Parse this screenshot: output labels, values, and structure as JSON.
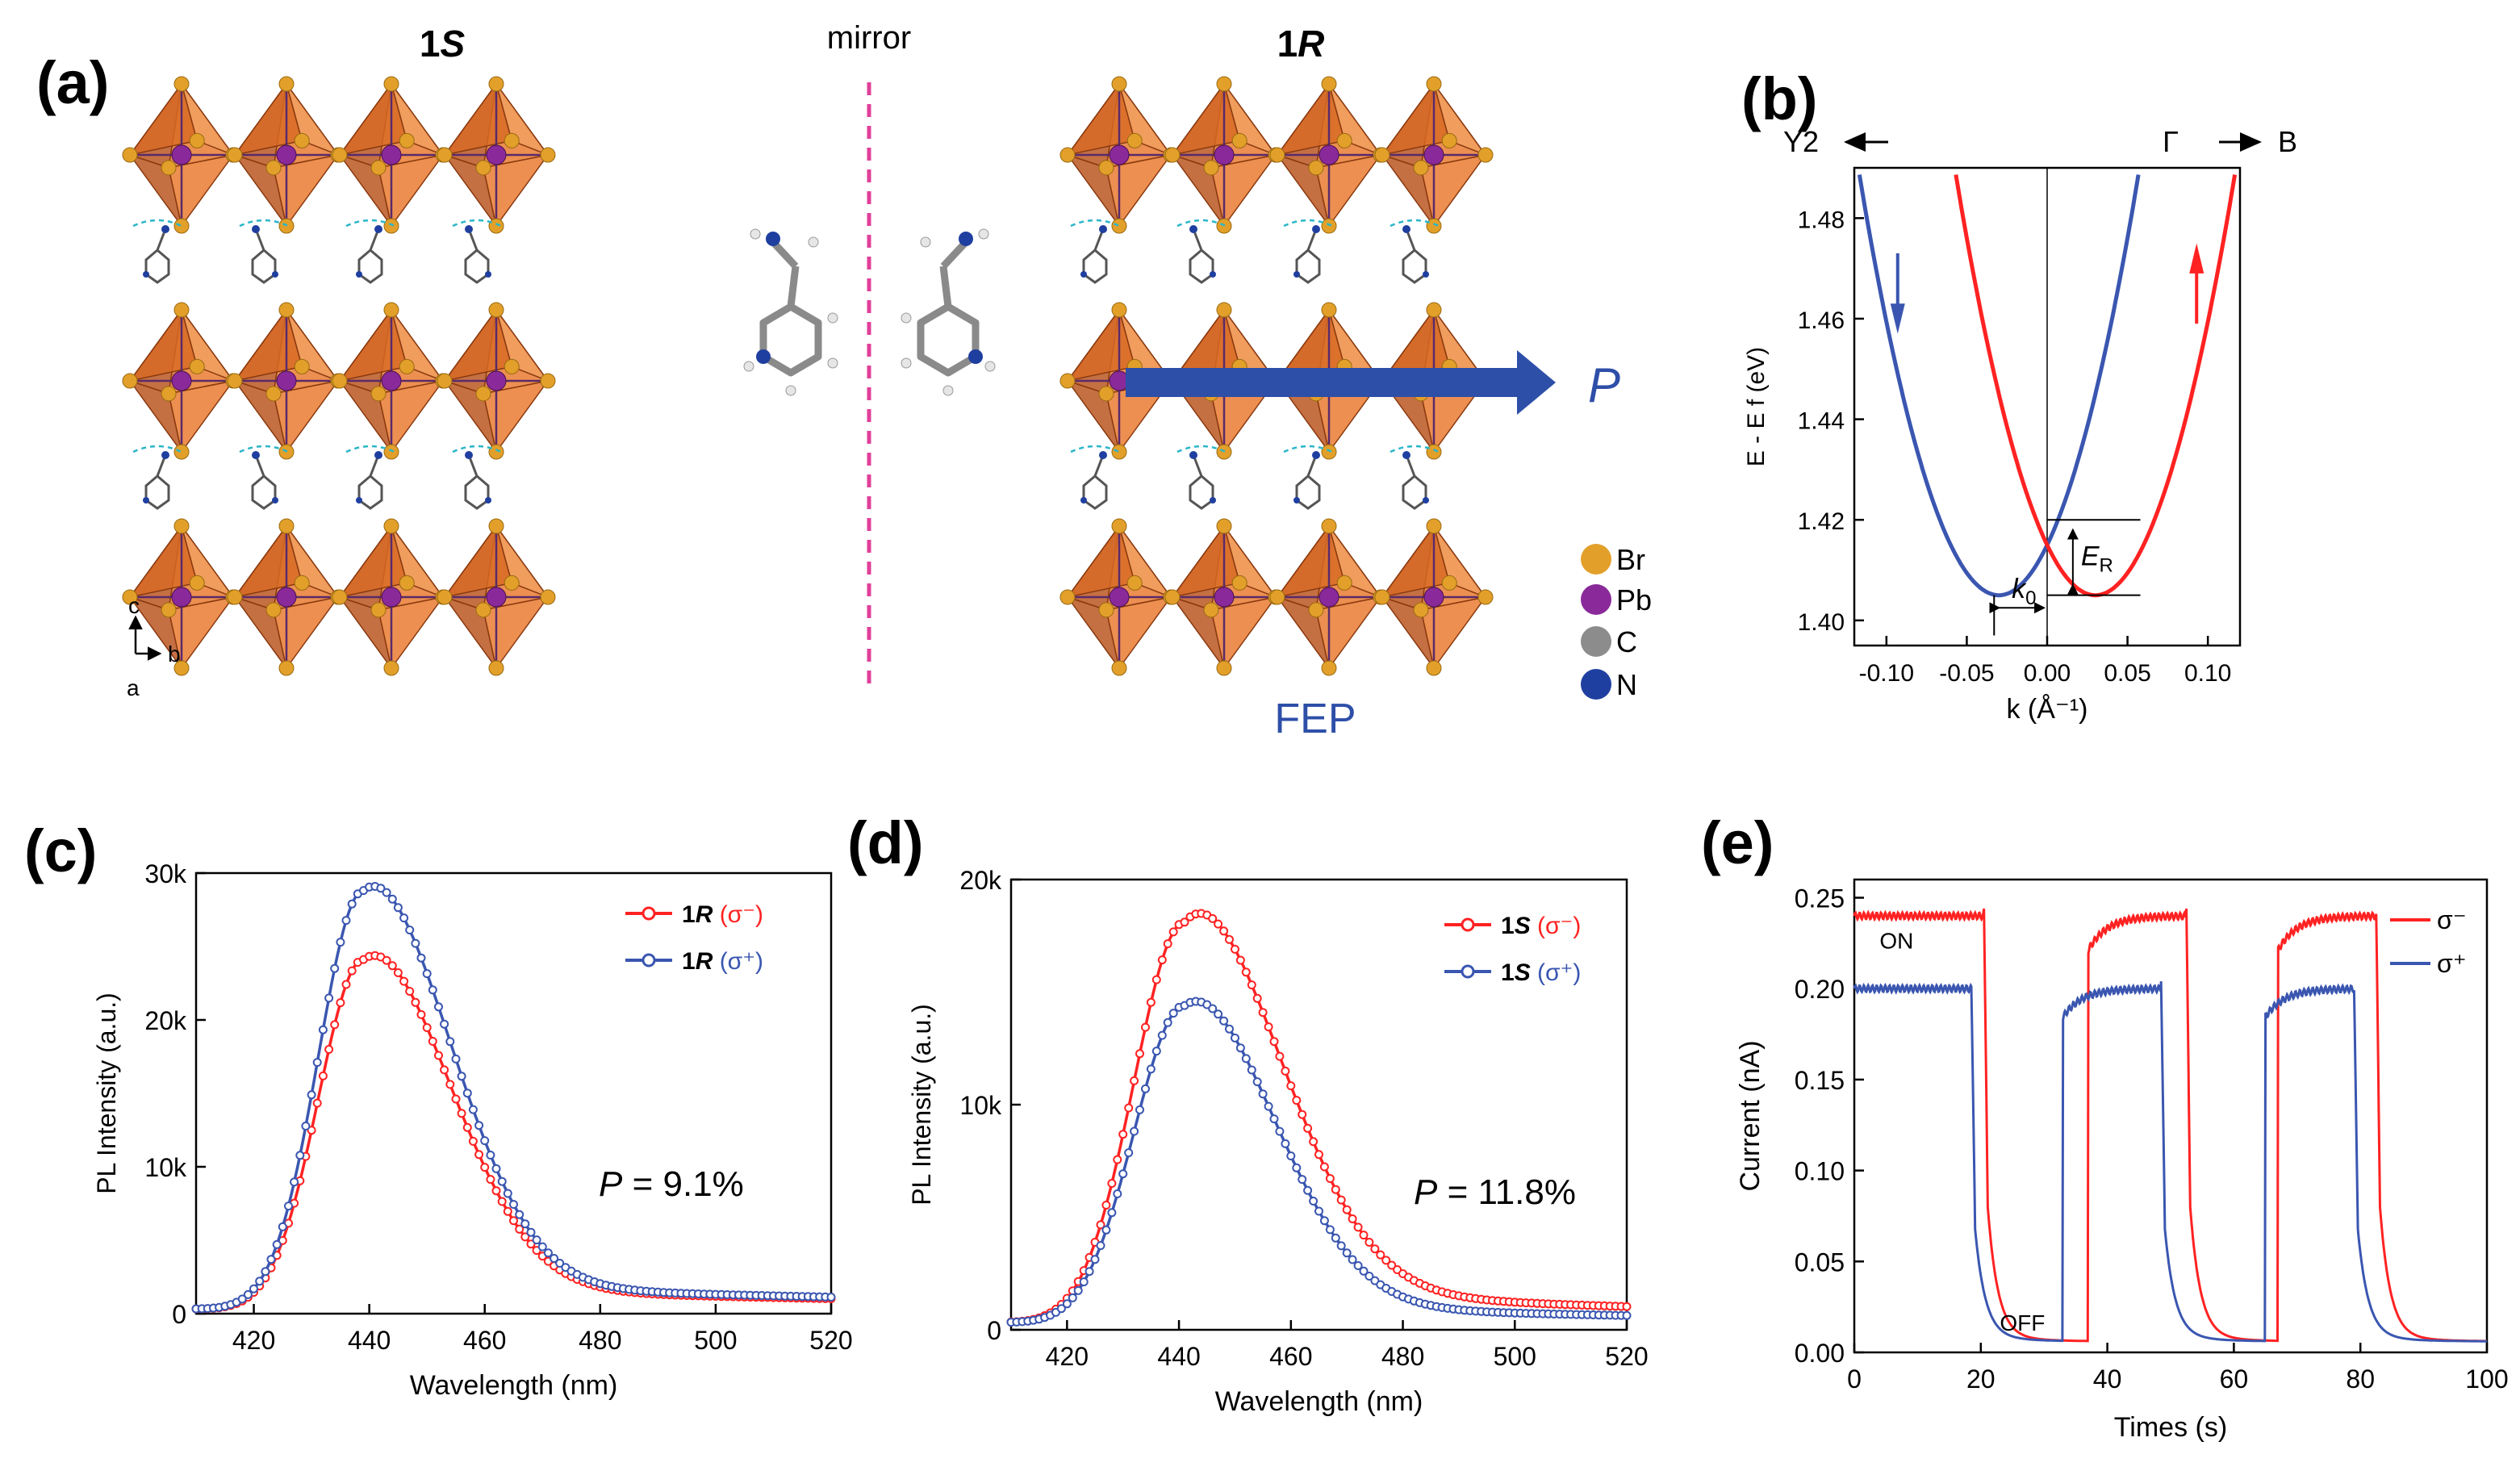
{
  "colors": {
    "red": "#ff2222",
    "blue": "#3a56b0",
    "fep_blue": "#2e4fa8",
    "octa": "#e8762a",
    "octa_dark": "#b8501a",
    "br": "#e2a02a",
    "pb": "#8a2a9a",
    "c": "#8c8c8c",
    "n": "#1f3fa0",
    "mirror": "#e0409a",
    "hbond": "#2bb6c8"
  },
  "panel_a": {
    "label": "(a)",
    "left_title": "1S",
    "left_title_num": "1",
    "left_title_sym": "S",
    "mirror_label": "mirror",
    "right_title_num": "1",
    "right_title_sym": "R",
    "polarization_label": "P",
    "fep_label": "FEP",
    "axis_c": "c",
    "axis_b": "b",
    "axis_a": "a",
    "legend": [
      {
        "element": "Br",
        "color_key": "br"
      },
      {
        "element": "Pb",
        "color_key": "pb"
      },
      {
        "element": "C",
        "color_key": "c"
      },
      {
        "element": "N",
        "color_key": "n"
      }
    ]
  },
  "chart_data": [
    {
      "id": "b",
      "label": "(b)",
      "type": "line",
      "title": "",
      "direction_left": "Y2",
      "direction_center": "Γ",
      "direction_right": "B",
      "xlabel": "k (Å⁻¹)",
      "ylabel": "E - E f (eV)",
      "xlim": [
        -0.12,
        0.12
      ],
      "ylim": [
        1.395,
        1.49
      ],
      "xticks": [
        -0.1,
        -0.05,
        0.0,
        0.05,
        0.1
      ],
      "xtick_labels": [
        "-0.10",
        "-0.05",
        "0.00",
        "0.05",
        "0.10"
      ],
      "yticks": [
        1.4,
        1.42,
        1.44,
        1.46,
        1.48
      ],
      "ytick_labels": [
        "1.40",
        "1.42",
        "1.44",
        "1.46",
        "1.48"
      ],
      "series": [
        {
          "name": "spin down",
          "color_key": "blue",
          "k0": -0.03,
          "e0": 1.405,
          "curvature": 11.1
        },
        {
          "name": "spin up",
          "color_key": "red",
          "k0": 0.03,
          "e0": 1.405,
          "curvature": 11.1
        }
      ],
      "annotations": {
        "k0_label": "k0",
        "er_label": "ER",
        "crossing_energy": 1.42
      }
    },
    {
      "id": "c",
      "label": "(c)",
      "type": "line",
      "xlabel": "Wavelength (nm)",
      "ylabel": "PL Intensity (a.u.)",
      "xlim": [
        410,
        520
      ],
      "ylim": [
        0,
        30000
      ],
      "xticks": [
        420,
        440,
        460,
        480,
        500,
        520
      ],
      "xtick_labels": [
        "420",
        "440",
        "460",
        "480",
        "500",
        "520"
      ],
      "yticks": [
        0,
        10000,
        20000,
        30000
      ],
      "ytick_labels": [
        "0",
        "10k",
        "20k",
        "30k"
      ],
      "annotation": "P = 9.1%",
      "annotation_sym": "P",
      "annotation_val": " = 9.1%",
      "series": [
        {
          "name": "1R (σ⁻)",
          "sample": "1R",
          "pol": "(σ⁻)",
          "color_key": "red",
          "peak_x": 439,
          "peak": 24000,
          "w_left": 7.8,
          "w_right": 14.5,
          "tail": 900
        },
        {
          "name": "1R (σ⁺)",
          "sample": "1R",
          "pol": "(σ⁺)",
          "color_key": "blue",
          "peak_x": 439,
          "peak": 28700,
          "w_left": 7.8,
          "w_right": 14.5,
          "tail": 1000
        }
      ]
    },
    {
      "id": "d",
      "label": "(d)",
      "type": "line",
      "xlabel": "Wavelength (nm)",
      "ylabel": "PL Intensity (a.u.)",
      "xlim": [
        410,
        520
      ],
      "ylim": [
        0,
        20000
      ],
      "xticks": [
        420,
        440,
        460,
        480,
        500,
        520
      ],
      "xtick_labels": [
        "420",
        "440",
        "460",
        "480",
        "500",
        "520"
      ],
      "yticks": [
        0,
        10000,
        20000
      ],
      "ytick_labels": [
        "0",
        "10k",
        "20k"
      ],
      "annotation": "P = 11.8%",
      "annotation_sym": "P",
      "annotation_val": " = 11.8%",
      "series": [
        {
          "name": "1S (σ⁻)",
          "sample": "1S",
          "pol": "(σ⁻)",
          "color_key": "red",
          "peak_x": 441,
          "peak": 18000,
          "w_left": 9.0,
          "w_right": 16.5,
          "tail": 900
        },
        {
          "name": "1S (σ⁺)",
          "sample": "1S",
          "pol": "(σ⁺)",
          "color_key": "blue",
          "peak_x": 441,
          "peak": 14300,
          "w_left": 9.0,
          "w_right": 15.5,
          "tail": 550
        }
      ]
    },
    {
      "id": "e",
      "label": "(e)",
      "type": "line",
      "xlabel": "Times (s)",
      "ylabel": "Current (nA)",
      "xlim": [
        0,
        100
      ],
      "ylim": [
        0,
        0.26
      ],
      "xticks": [
        0,
        20,
        40,
        60,
        80,
        100
      ],
      "xtick_labels": [
        "0",
        "20",
        "40",
        "60",
        "80",
        "100"
      ],
      "yticks": [
        0,
        0.05,
        0.1,
        0.15,
        0.2,
        0.25
      ],
      "ytick_labels": [
        "0.00",
        "0.05",
        "0.10",
        "0.15",
        "0.20",
        "0.25"
      ],
      "on_label": "ON",
      "off_label": "OFF",
      "series": [
        {
          "name": "σ⁻",
          "color_key": "red",
          "on_level": 0.24,
          "off_level": 0.006,
          "on_intervals": [
            [
              0,
              20.5
            ],
            [
              37,
              52.5
            ],
            [
              67,
              82.5
            ]
          ]
        },
        {
          "name": "σ⁺",
          "color_key": "blue",
          "on_level": 0.2,
          "off_level": 0.006,
          "on_intervals": [
            [
              0,
              18.5
            ],
            [
              33,
              48.5
            ],
            [
              65,
              79
            ]
          ]
        }
      ]
    }
  ]
}
